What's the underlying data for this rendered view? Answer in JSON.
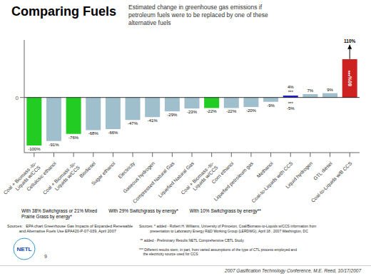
{
  "chart_data": {
    "type": "bar",
    "title": "Comparing Fuels",
    "subtitle": "Estimated change in greenhouse gas emissions if\npetroleum fuels were to be replaced by one of these\nalternative fuels",
    "categories": [
      "Coal + Biomass -to-\nLiquids w/CCS",
      "Cellulosic ethanol",
      "Coal + Biomass -to-\nLiquids w/CCS",
      "Biodiesel",
      "Sugar ethanol",
      "Electricity",
      "Gaseous hydrogen",
      "Compressed Natural Gas",
      "Liquefied Natural Gas",
      "Coal + Biomass -to-\nLiquids w/CCS",
      "Corn ethanol",
      "Liquefied petroleum gas",
      "Methanol",
      "Coal-to-Liquids with CCS",
      "Liquid hydrogen",
      "GTL diesel",
      "Coal-to-Liquids w/B CCS"
    ],
    "values": [
      -100,
      -91,
      -76,
      -68,
      -66,
      -47,
      -41,
      -29,
      -23,
      -22,
      -22,
      -20,
      -9,
      4,
      7,
      9,
      80
    ],
    "value_labels": [
      "-100%",
      "-91%",
      "-76%",
      "-68%",
      "-66%",
      "-47%",
      "-41%",
      "-29%",
      "-23%",
      "-22%",
      "-22%",
      "-20%",
      "-9%",
      "4%\n***",
      "7%",
      "9%",
      "80%***"
    ],
    "colors": [
      "#22cc22",
      "#a0bfcc",
      "#22cc22",
      "#a0bfcc",
      "#a0bfcc",
      "#a0bfcc",
      "#a0bfcc",
      "#a0bfcc",
      "#a0bfcc",
      "#22cc22",
      "#a0bfcc",
      "#a0bfcc",
      "#a0bfcc",
      "#2222cc",
      "#a0bfcc",
      "#a0bfcc",
      "#cc2222"
    ],
    "data_labels": true,
    "ylim": [
      -115,
      120
    ],
    "yticks": [
      0
    ],
    "grid": false,
    "annotations": [
      {
        "index": 13,
        "value": -5,
        "text": "***\n-5%"
      },
      {
        "index": 16,
        "value": 110,
        "text": "110%",
        "arrow": true
      }
    ],
    "notes": [
      "With 38% Switchgrass or 21% Mixed\nPrairie Grass by energy*",
      "With 29% Switchgrass by energy*",
      "With 10% Switchgrass by energy**"
    ],
    "sources": [
      "Sources:   EPA chart Greenhouse Gas Impacts of Expanded Renewable\n           and Alternative Fuels Use EPA420-P-07-039, April 2007",
      "Sources: * added - Robert H. Williams, University of Princeton, Coal/Biomass-to-Liquids w/CCS information from\n           presentation to Laboratory Energy R&D Working Group (LERDWG), April 18 , 2007 Washington, DC\n\n ** added - Preliminary Results NETL Comprehensive CBTL Study\n\n*** Different results stem, in part, from varied assumptions of the type of CTL process employed and\n    the electricity source used for CCS"
    ],
    "footer": "2007 Gasification Technology Conference, M.E. Reed, 10/17/2007",
    "logo": [
      "NETL",
      "9"
    ]
  }
}
